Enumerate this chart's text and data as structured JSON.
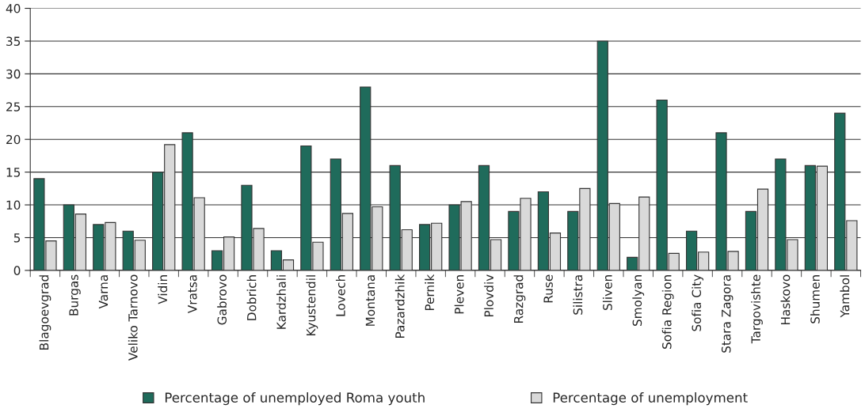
{
  "chart_data": {
    "type": "bar",
    "categories": [
      "Blagoevgrad",
      "Burgas",
      "Varna",
      "Veliko Tarnovo",
      "Vidin",
      "Vratsa",
      "Gabrovo",
      "Dobrich",
      "Kardzhali",
      "Kyustendil",
      "Lovech",
      "Montana",
      "Pazardzhik",
      "Pernik",
      "Pleven",
      "Plovdiv",
      "Razgrad",
      "Ruse",
      "Silistra",
      "Sliven",
      "Smolyan",
      "Sofia Region",
      "Sofia City",
      "Stara Zagora",
      "Targovishte",
      "Haskovo",
      "Shumen",
      "Yambol"
    ],
    "series": [
      {
        "name": "Percentage of unemployed Roma youth",
        "color": "#1f6b5b",
        "values": [
          14,
          10,
          7,
          6,
          15,
          21,
          3,
          13,
          3,
          19,
          17,
          28,
          16,
          7,
          10,
          16,
          9,
          12,
          9,
          35,
          2,
          26,
          6,
          21,
          9,
          17,
          16,
          24
        ]
      },
      {
        "name": "Percentage of unemployment",
        "color": "#d9d9d9",
        "values": [
          4.5,
          8.6,
          7.3,
          4.6,
          19.2,
          11.1,
          5.1,
          6.4,
          1.6,
          4.3,
          8.7,
          9.7,
          6.2,
          7.2,
          10.5,
          4.7,
          11.0,
          5.7,
          12.5,
          10.2,
          11.2,
          2.6,
          2.8,
          2.9,
          12.4,
          4.7,
          15.9,
          7.6
        ]
      }
    ],
    "ylim": [
      0,
      40
    ],
    "yticks": [
      0,
      5,
      10,
      15,
      20,
      25,
      30,
      35,
      40
    ],
    "grid": "y",
    "legend": "bottom"
  }
}
